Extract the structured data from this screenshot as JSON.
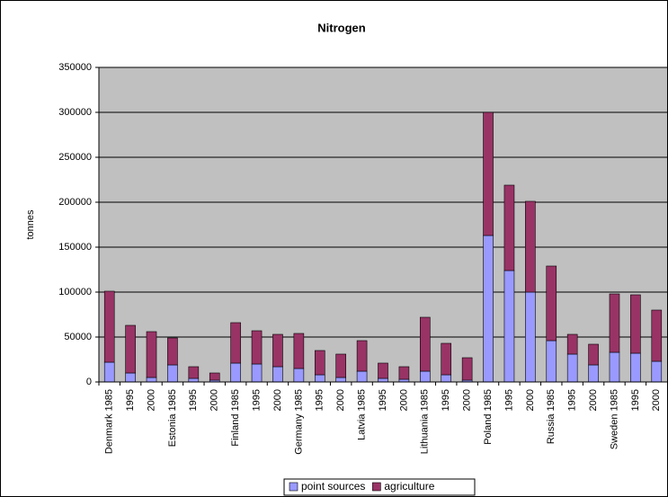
{
  "chart_data": {
    "type": "stacked_bar",
    "title": "Nitrogen",
    "y_label": "tonnes",
    "categories": [
      "Denmark 1985",
      "1995",
      "2000",
      "Estonia 1985",
      "1995",
      "2000",
      "Finland 1985",
      "1995",
      "2000",
      "Germany 1985",
      "1995",
      "2000",
      "Latvia 1985",
      "1995",
      "2000",
      "Lithuania 1985",
      "1995",
      "2000",
      "Poland 1985",
      "1995",
      "2000",
      "Russia 1985",
      "1995",
      "2000",
      "Sweden 1985",
      "1995",
      "2000"
    ],
    "series": [
      {
        "name": "point sources",
        "color": "#9999ff",
        "values": [
          22000,
          10000,
          5000,
          19000,
          4000,
          2000,
          21000,
          20000,
          17000,
          15000,
          8000,
          5000,
          12000,
          4000,
          3000,
          12000,
          8000,
          2000,
          163000,
          124000,
          100000,
          46000,
          31000,
          19000,
          33000,
          32000,
          23000
        ]
      },
      {
        "name": "agriculture",
        "color": "#993366",
        "values": [
          79000,
          53000,
          51000,
          30000,
          13000,
          8000,
          45000,
          37000,
          36000,
          39000,
          27000,
          26000,
          34000,
          17000,
          14000,
          60000,
          35000,
          25000,
          137000,
          95000,
          101000,
          83000,
          22000,
          23000,
          65000,
          65000,
          57000
        ]
      }
    ],
    "ylim": [
      0,
      350000
    ],
    "yticks": [
      0,
      50000,
      100000,
      150000,
      200000,
      250000,
      300000,
      350000
    ],
    "grid": true,
    "plot_background": "#c0c0c0",
    "legend": "bottom"
  }
}
